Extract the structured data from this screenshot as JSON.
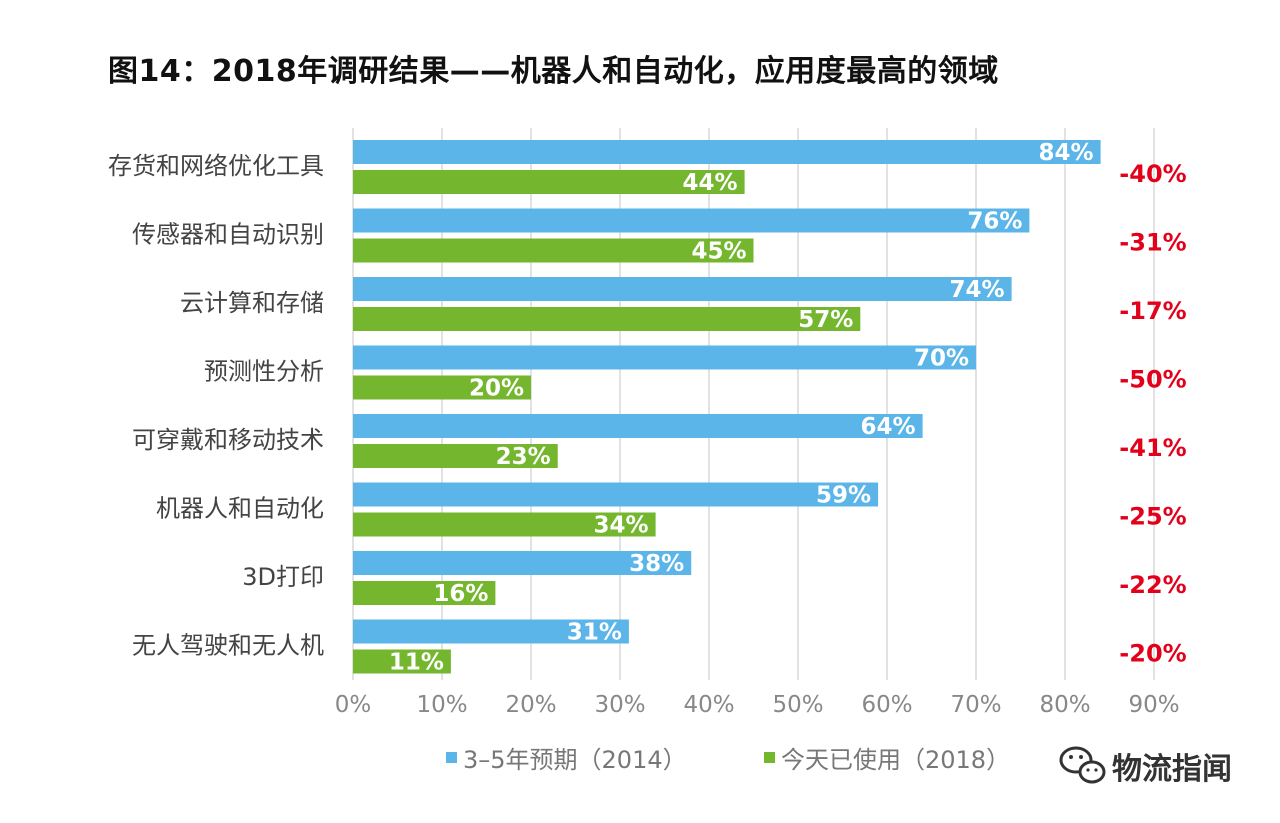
{
  "chart_data": {
    "type": "bar",
    "orientation": "horizontal",
    "title": "图14：2018年调研结果——机器人和自动化，应用度最高的领域",
    "categories": [
      "存货和网络优化工具",
      "传感器和自动识别",
      "云计算和存储",
      "预测性分析",
      "可穿戴和移动技术",
      "机器人和自动化",
      "3D打印",
      "无人驾驶和无人机"
    ],
    "series": [
      {
        "name": "3–5年预期（2014）",
        "color": "#5bb5e8",
        "values": [
          84,
          76,
          74,
          70,
          64,
          59,
          38,
          31
        ],
        "labels": [
          "84%",
          "76%",
          "74%",
          "70%",
          "64%",
          "59%",
          "38%",
          "31%"
        ]
      },
      {
        "name": "今天已使用（2018）",
        "color": "#74b72e",
        "values": [
          44,
          45,
          57,
          20,
          23,
          34,
          16,
          11
        ],
        "labels": [
          "44%",
          "45%",
          "57%",
          "20%",
          "23%",
          "34%",
          "16%",
          "11%"
        ]
      }
    ],
    "change_labels": [
      "-40%",
      "-31%",
      "-17%",
      "-50%",
      "-41%",
      "-25%",
      "-22%",
      "-20%"
    ],
    "change_color": "#e3001b",
    "xlim": [
      0,
      90
    ],
    "xticks": [
      0,
      10,
      20,
      30,
      40,
      50,
      60,
      70,
      80,
      90
    ],
    "xtick_labels": [
      "0%",
      "10%",
      "20%",
      "30%",
      "40%",
      "50%",
      "60%",
      "70%",
      "80%",
      "90%"
    ],
    "grid": true,
    "legend_position": "bottom"
  },
  "watermark": {
    "text": "物流指闻",
    "icon": "wechat-icon"
  }
}
